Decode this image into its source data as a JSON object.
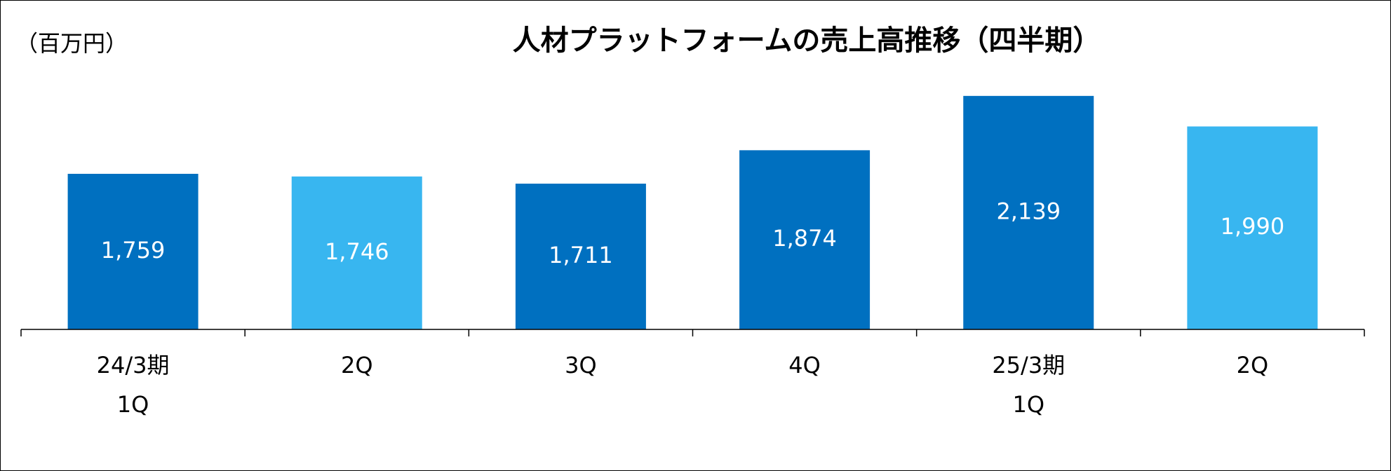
{
  "chart_data": {
    "type": "bar",
    "title": "人材プラットフォームの売上高推移（四半期）",
    "unit": "（百万円）",
    "categories": [
      [
        "24/3期",
        "1Q"
      ],
      [
        "2Q"
      ],
      [
        "3Q"
      ],
      [
        "4Q"
      ],
      [
        "25/3期",
        "1Q"
      ],
      [
        "2Q"
      ]
    ],
    "values": [
      1759,
      1746,
      1711,
      1874,
      2139,
      1990
    ],
    "value_labels": [
      "1,759",
      "1,746",
      "1,711",
      "1,874",
      "2,139",
      "1,990"
    ],
    "colors": [
      "#0070c0",
      "#38b6f0",
      "#0070c0",
      "#0070c0",
      "#0070c0",
      "#38b6f0"
    ],
    "ylim": [
      1000,
      2200
    ]
  }
}
